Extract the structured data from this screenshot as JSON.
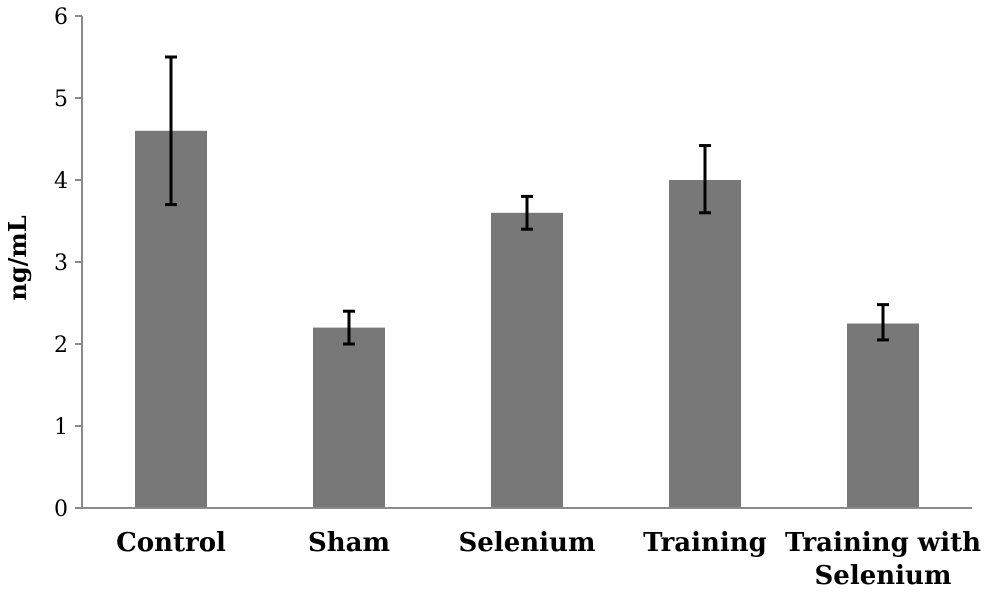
{
  "chart_data": {
    "type": "bar",
    "categories": [
      "Control",
      "Sham",
      "Selenium",
      "Training",
      "Training with Selenium"
    ],
    "category_label_lines": [
      [
        "Control"
      ],
      [
        "Sham"
      ],
      [
        "Selenium"
      ],
      [
        "Training"
      ],
      [
        "Training with",
        "Selenium"
      ]
    ],
    "values": [
      4.6,
      2.2,
      3.6,
      4.0,
      2.25
    ],
    "error_low": [
      3.7,
      2.0,
      3.4,
      3.6,
      2.05
    ],
    "error_high": [
      5.5,
      2.4,
      3.8,
      4.42,
      2.48
    ],
    "ylabel": "ng/mL",
    "xlabel": "",
    "title": "",
    "ylim": [
      0,
      6
    ],
    "yticks": [
      0,
      1,
      2,
      3,
      4,
      5,
      6
    ],
    "grid": false,
    "legend": "none",
    "bar_color": "#787878",
    "error_bar_color": "#000000",
    "axis_color": "#8a8a8a"
  }
}
